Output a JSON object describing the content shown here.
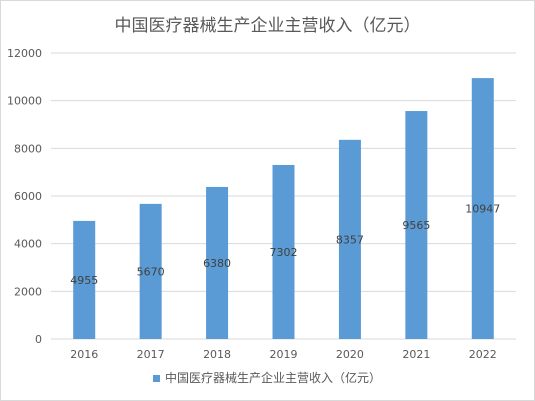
{
  "chart_data": {
    "type": "bar",
    "title": "中国医疗器械生产企业主营收入（亿元）",
    "categories": [
      "2016",
      "2017",
      "2018",
      "2019",
      "2020",
      "2021",
      "2022"
    ],
    "series": [
      {
        "name": "中国医疗器械生产企业主营收入（亿元）",
        "values": [
          4955,
          5670,
          6380,
          7302,
          8357,
          9565,
          10947
        ]
      }
    ],
    "ylim": [
      0,
      12000
    ],
    "yticks": [
      0,
      2000,
      4000,
      6000,
      8000,
      10000,
      12000
    ],
    "grid": true,
    "legend": "bottom",
    "colors": {
      "bar": "#5b9bd5",
      "grid": "#d9d9d9",
      "text": "#595959"
    }
  }
}
